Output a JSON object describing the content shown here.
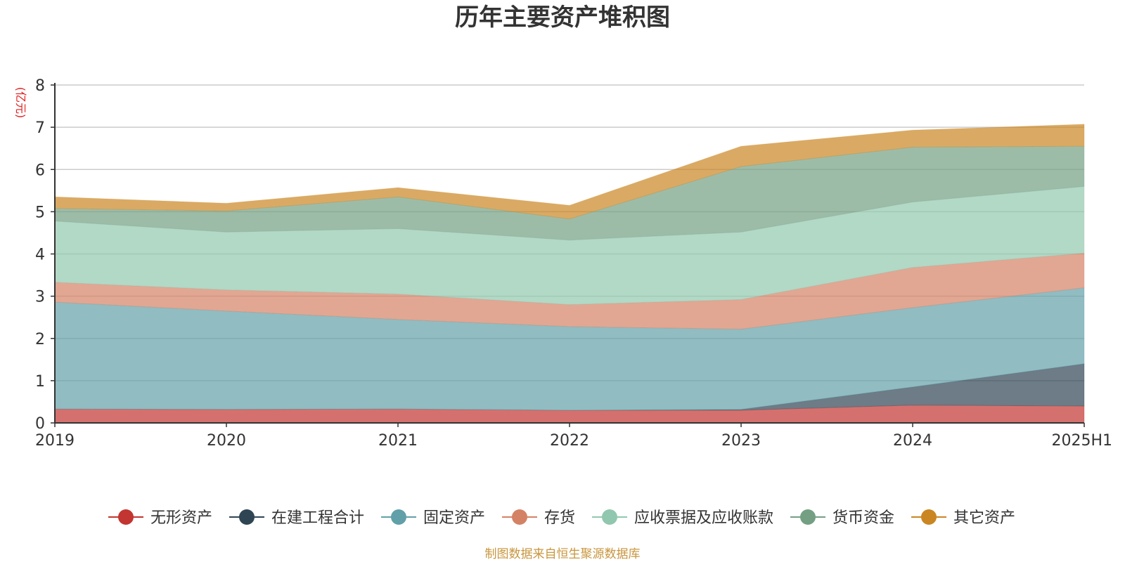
{
  "chart_data": {
    "type": "area",
    "stacked": true,
    "title": "历年主要资产堆积图",
    "unit_label": "(亿元)",
    "source_note": "制图数据来自恒生聚源数据库",
    "x": [
      "2019",
      "2020",
      "2021",
      "2022",
      "2023",
      "2024",
      "2025H1"
    ],
    "ylim": [
      0,
      8
    ],
    "yticks": [
      0,
      1,
      2,
      3,
      4,
      5,
      6,
      7,
      8
    ],
    "grid": true,
    "legend_position": "bottom",
    "series": [
      {
        "name": "无形资产",
        "color": "#c23531",
        "values": [
          0.33,
          0.32,
          0.33,
          0.3,
          0.3,
          0.42,
          0.4
        ]
      },
      {
        "name": "在建工程合计",
        "color": "#2f4554",
        "values": [
          0.0,
          0.0,
          0.0,
          0.0,
          0.02,
          0.43,
          1.0
        ]
      },
      {
        "name": "固定资产",
        "color": "#61a0a8",
        "values": [
          2.53,
          2.33,
          2.12,
          1.98,
          1.9,
          1.88,
          1.8
        ]
      },
      {
        "name": "存货",
        "color": "#d48265",
        "values": [
          0.47,
          0.5,
          0.6,
          0.52,
          0.7,
          0.95,
          0.82
        ]
      },
      {
        "name": "应收票据及应收账款",
        "color": "#91c7ae",
        "values": [
          1.45,
          1.37,
          1.55,
          1.53,
          1.6,
          1.55,
          1.58
        ]
      },
      {
        "name": "货币资金",
        "color": "#749f83",
        "values": [
          0.3,
          0.5,
          0.75,
          0.5,
          1.55,
          1.3,
          0.95
        ]
      },
      {
        "name": "其它资产",
        "color": "#ca8622",
        "values": [
          0.27,
          0.18,
          0.22,
          0.32,
          0.48,
          0.4,
          0.52
        ]
      }
    ]
  }
}
